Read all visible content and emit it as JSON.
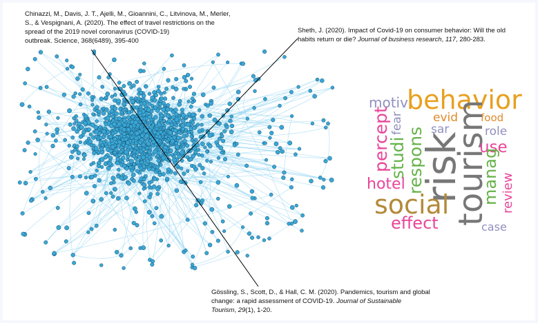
{
  "citations": {
    "chinazzi": {
      "line1": "Chinazzi, M., Davis, J. T., Ajelli, M., Gioannini, C., Litvinova, M., Merler,",
      "line2": "S., & Vespignani, A. (2020). The effect of travel restrictions on the",
      "line3": "spread of the 2019 novel coronavirus (COVID-19)",
      "line4": "outbreak. Science, 368(6489), 395-400"
    },
    "sheth": {
      "line1": "Sheth, J. (2020). Impact of Covid-19 on consumer behavior: Will the old",
      "line2_pre": "habits return or die? ",
      "line2_journal": "Journal of business research",
      "line2_sep": ", ",
      "line2_volume": "117",
      "line2_post": ", 280-283."
    },
    "gossling": {
      "line1": "Gössling, S., Scott, D., & Hall, C. M. (2020). Pandemics, tourism and global",
      "line2_pre": "change: a rapid assessment of COVID-19. ",
      "line2_journal": "Journal of Sustainable",
      "line3_journal": "Tourism",
      "line3_sep": ", ",
      "line3_volume": "29",
      "line3_post": "(1), 1-20."
    }
  },
  "network": {
    "node_color": "#3aa7d6",
    "node_stroke": "#14506e",
    "edge_color": "#8fd3f2",
    "pointer_color": "#000000"
  },
  "word_cloud": {
    "words": [
      {
        "text": "behavior",
        "color": "#e8a020"
      },
      {
        "text": "motiv",
        "color": "#8f8fc0"
      },
      {
        "text": "fear",
        "color": "#8f8fc0"
      },
      {
        "text": "evid",
        "color": "#e08a2a"
      },
      {
        "text": "food",
        "color": "#e08a2a"
      },
      {
        "text": "sar",
        "color": "#8f8fc0"
      },
      {
        "text": "role",
        "color": "#8f8fc0"
      },
      {
        "text": "percept",
        "color": "#e8459a"
      },
      {
        "text": "studi",
        "color": "#66b24a"
      },
      {
        "text": "respons",
        "color": "#66b24a"
      },
      {
        "text": "risk",
        "color": "#777777"
      },
      {
        "text": "tourism",
        "color": "#777777"
      },
      {
        "text": "use",
        "color": "#e8459a"
      },
      {
        "text": "manag",
        "color": "#66b24a"
      },
      {
        "text": "review",
        "color": "#e8459a"
      },
      {
        "text": "hotel",
        "color": "#e8459a"
      },
      {
        "text": "social",
        "color": "#b38a3a"
      },
      {
        "text": "effect",
        "color": "#e8459a"
      },
      {
        "text": "case",
        "color": "#8f8fc0"
      }
    ]
  }
}
